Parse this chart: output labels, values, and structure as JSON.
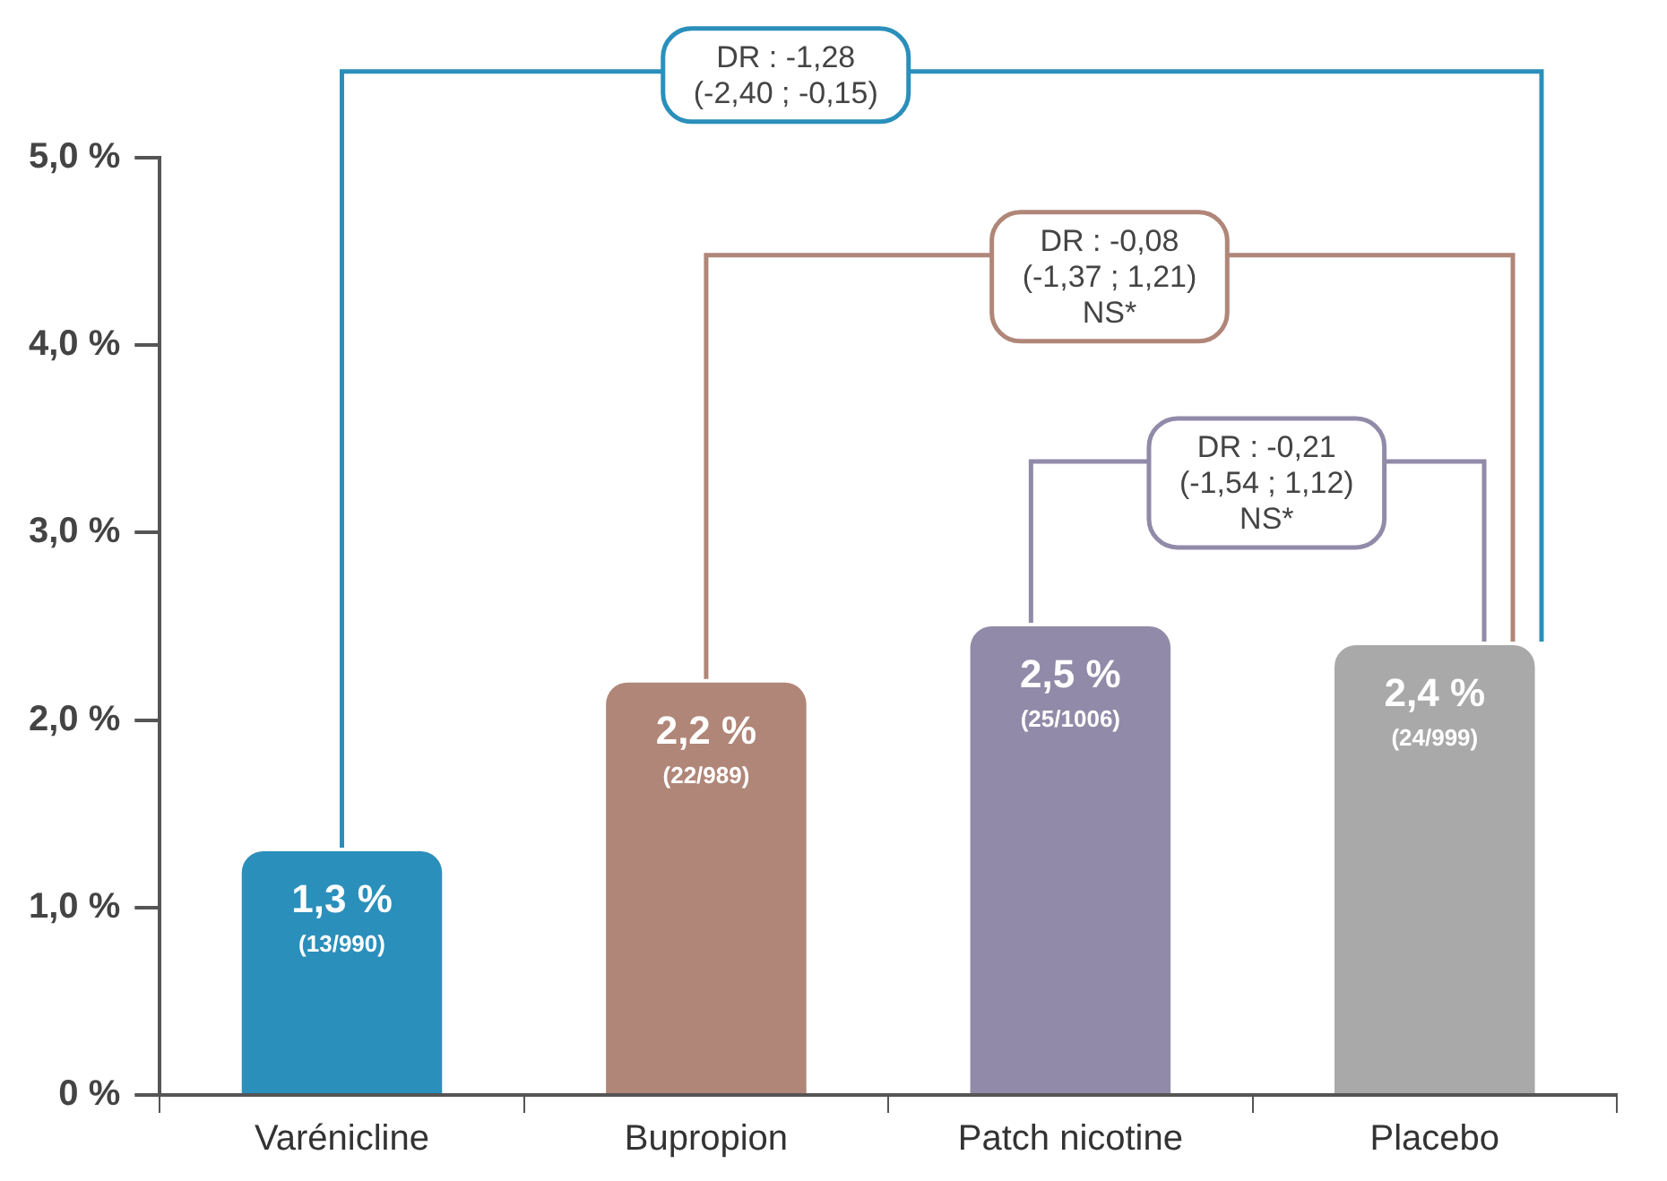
{
  "chart_data": {
    "type": "bar",
    "categories": [
      "Varénicline",
      "Bupropion",
      "Patch nicotine",
      "Placebo"
    ],
    "values": [
      1.3,
      2.2,
      2.5,
      2.4
    ],
    "colors": [
      "#2b8fbb",
      "#b08678",
      "#918aa8",
      "#a9a9a9"
    ],
    "value_labels": [
      "1,3 %\n(13/990)",
      "2,2 %\n(22/989)",
      "2,5 %\n(25/1006)",
      "2,4 %\n(24/999)"
    ],
    "ylim": [
      0,
      5
    ],
    "yticks": [
      {
        "value": 0,
        "label": "0 %"
      },
      {
        "value": 1,
        "label": "1,0 %"
      },
      {
        "value": 2,
        "label": "2,0 %"
      },
      {
        "value": 3,
        "label": "3,0 %"
      },
      {
        "value": 4,
        "label": "4,0 %"
      },
      {
        "value": 5,
        "label": "5,0 %"
      }
    ],
    "grid": false,
    "annotations": [
      "DR : -1,28\n(-2,40 ; -0,15)",
      "DR : -0,08\n(-1,37 ; 1,21)\nNS*",
      "DR : -0,21\n(-1,54 ; 1,12)\nNS*"
    ]
  }
}
